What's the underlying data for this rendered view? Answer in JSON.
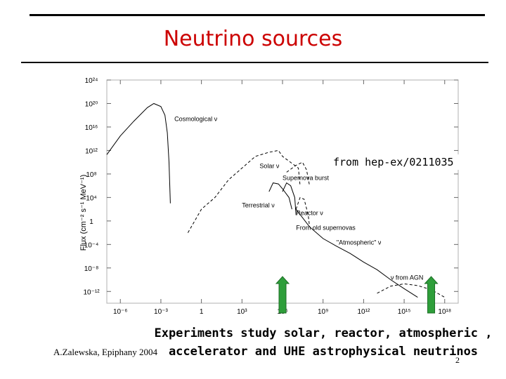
{
  "slide": {
    "title": "Neutrino sources",
    "source_note": "from hep-ex/0211035",
    "caption_line1": "Experiments study solar, reactor, atmospheric ,",
    "caption_line2": "accelerator and UHE astrophysical neutrinos",
    "footer": "A.Zalewska, Epiphany 2004",
    "slide_number": "2",
    "title_color": "#cc0000",
    "arrow_color": "#2e9e3a"
  },
  "chart_data": {
    "type": "line",
    "log_x": true,
    "log_y": true,
    "xlabel": "",
    "ylabel": "Flux (cm⁻² s⁻¹ MeV⁻¹)",
    "x_ticks": [
      "10⁻⁶",
      "10⁻³",
      "1",
      "10³",
      "10⁶",
      "10⁹",
      "10¹²",
      "10¹⁵",
      "10¹⁸"
    ],
    "y_ticks": [
      "10²⁴",
      "10²⁰",
      "10¹⁶",
      "10¹²",
      "10⁸",
      "10⁴",
      "1",
      "10⁻⁴",
      "10⁻⁸",
      "10⁻¹²"
    ],
    "xlim": [
      1e-07,
      1e+19
    ],
    "ylim": [
      1e-14,
      1e+24
    ],
    "grid": false,
    "series": [
      {
        "name": "Cosmological ν",
        "style": "solid",
        "points": [
          [
            1e-07,
            200000000000.0
          ],
          [
            1e-06,
            300000000000000.0
          ],
          [
            1e-05,
            1e+17
          ],
          [
            0.0001,
            2e+19
          ],
          [
            0.0003,
            1e+20
          ],
          [
            0.001,
            3e+19
          ],
          [
            0.002,
            1e+18
          ],
          [
            0.003,
            1000000000000000.0
          ],
          [
            0.004,
            10000000000.0
          ],
          [
            0.005,
            1000.0
          ]
        ]
      },
      {
        "name": "Solar ν",
        "style": "dashed",
        "points": [
          [
            0.1,
            0.01
          ],
          [
            1,
            100.0
          ],
          [
            10.0,
            10000.0
          ],
          [
            100.0,
            10000000.0
          ],
          [
            1000.0,
            1000000000.0
          ],
          [
            10000.0,
            100000000000.0
          ],
          [
            100000.0,
            500000000000.0
          ],
          [
            500000.0,
            1000000000000.0
          ],
          [
            1000000.0,
            100000000000.0
          ],
          [
            15000000.0,
            1000000000.0
          ],
          [
            20000000.0,
            1000000.0
          ]
        ]
      },
      {
        "name": "Supernova burst",
        "style": "dashed",
        "points": [
          [
            2000000.0,
            200000000.0
          ],
          [
            10000000.0,
            3000000000.0
          ],
          [
            30000000.0,
            10000000000.0
          ],
          [
            60000000.0,
            500000000.0
          ],
          [
            100000000.0,
            1000000.0
          ]
        ]
      },
      {
        "name": "Terrestrial ν",
        "style": "solid",
        "points": [
          [
            100000.0,
            100000.0
          ],
          [
            200000.0,
            3000000.0
          ],
          [
            500000.0,
            2000000.0
          ],
          [
            1000000.0,
            300000.0
          ],
          [
            3000000.0,
            10000.0
          ],
          [
            5000000.0,
            100.0
          ]
        ]
      },
      {
        "name": "Reactor ν",
        "style": "solid",
        "points": [
          [
            1000000.0,
            100000.0
          ],
          [
            2000000.0,
            3000000.0
          ],
          [
            4000000.0,
            1000000.0
          ],
          [
            8000000.0,
            10000.0
          ],
          [
            10000000.0,
            10.0
          ]
        ]
      },
      {
        "name": "From old supernovas",
        "style": "dashed",
        "points": [
          [
            10000000.0,
            100.0
          ],
          [
            20000000.0,
            10000.0
          ],
          [
            40000000.0,
            5000.0
          ],
          [
            80000000.0,
            10.0
          ],
          [
            100000000.0,
            0.1
          ]
        ]
      },
      {
        "name": "\"Atmospheric\" ν",
        "style": "solid",
        "points": [
          [
            10000000.0,
            100.0
          ],
          [
            100000000.0,
            0.1
          ],
          [
            1000000000.0,
            0.001
          ],
          [
            10000000000.0,
            5e-05
          ],
          [
            100000000000.0,
            3e-06
          ],
          [
            1000000000000.0,
            1e-07
          ],
          [
            10000000000000.0,
            5e-09
          ],
          [
            100000000000000.0,
            1e-10
          ],
          [
            1000000000000000.0,
            3e-12
          ],
          [
            1e+16,
            1e-13
          ]
        ]
      },
      {
        "name": "ν from AGN",
        "style": "dashed",
        "points": [
          [
            10000000000000.0,
            5e-13
          ],
          [
            100000000000000.0,
            8e-12
          ],
          [
            1000000000000000.0,
            2e-11
          ],
          [
            1e+16,
            1e-11
          ],
          [
            1e+17,
            2e-12
          ],
          [
            1e+18,
            1e-13
          ]
        ]
      }
    ],
    "annotations": [
      {
        "text": "Cosmological ν",
        "x": 0.01,
        "y": 1e+17
      },
      {
        "text": "Solar ν",
        "x": 20000.0,
        "y": 1000000000.0
      },
      {
        "text": "Supernova burst",
        "x": 1000000.0,
        "y": 10000000.0
      },
      {
        "text": "Terrestrial ν",
        "x": 1000.0,
        "y": 200.0
      },
      {
        "text": "Reactor ν",
        "x": 10000000.0,
        "y": 10.0
      },
      {
        "text": "From old supernovas",
        "x": 10000000.0,
        "y": 0.03
      },
      {
        "text": "\"Atmospheric\" ν",
        "x": 10000000000.0,
        "y": 0.0001
      },
      {
        "text": "ν from AGN",
        "x": 100000000000000.0,
        "y": 1e-10
      }
    ],
    "arrows_at_x": [
      1000000.0,
      1e+17
    ]
  }
}
